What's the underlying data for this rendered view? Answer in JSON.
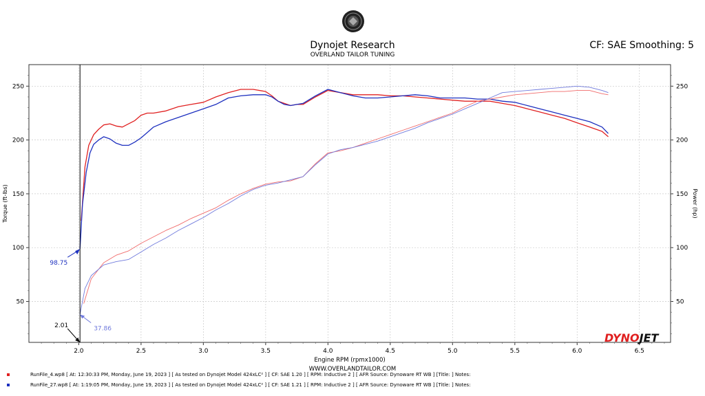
{
  "header": {
    "company": "Dynojet Research",
    "shop": "OVERLAND TAILOR TUNING",
    "cf_info": "CF: SAE Smoothing: 5",
    "website": "WWW.OVERLANDTAILOR.COM",
    "brand_logo": "DYNOJET"
  },
  "colors": {
    "red": "#e02020",
    "blue": "#1c2fbf",
    "light_red": "#f06a6a",
    "light_blue": "#6f79dc",
    "grid": "#c8c8c8",
    "cursor": "#000000"
  },
  "runs": [
    {
      "file": "RunFile_4.wp8",
      "details": "RunFile_4.wp8 [ At:  12:30:33 PM, Monday, June 19, 2023 ] [ As tested on Dynojet Model 424xLC² ] [ CF: SAE 1.20 ] [ RPM: Inductive 2 ] [ AFR Source: Dynoware RT WB ] [Title: ]   Notes:",
      "color": "#e02020"
    },
    {
      "file": "RunFile_27.wp8",
      "details": "RunFile_27.wp8 [ At:  1:19:05 PM, Monday, June 19, 2023 ] [ As tested on Dynojet Model 424xLC² ] [ CF: SAE 1.21 ] [ RPM: Inductive 2 ] [ AFR Source: Dynoware RT WB ] [Title: ]   Notes:",
      "color": "#1c2fbf"
    }
  ],
  "chart_data": {
    "type": "line",
    "xlabel": "Engine RPM (rpmx1000)",
    "ylabel_left": "Torque (ft-lbs)",
    "ylabel_right": "Power (hp)",
    "xlim": [
      1.6,
      6.75
    ],
    "ylim": [
      12,
      270
    ],
    "x_ticks": [
      "2.0",
      "2.5",
      "3.0",
      "3.5",
      "4.0",
      "4.5",
      "5.0",
      "5.5",
      "6.0",
      "6.5"
    ],
    "y_ticks": [
      "50",
      "100",
      "150",
      "200",
      "250"
    ],
    "grid": true,
    "cursor": {
      "rpm_label": "2.01",
      "rpm": 2.01,
      "torque_label": "98.75",
      "torque": 98.75,
      "power_label": "37.86",
      "power": 37.86
    },
    "series": [
      {
        "metric": "torque",
        "run": "RunFile_4.wp8",
        "color": "#e02020",
        "x": [
          2.02,
          2.05,
          2.08,
          2.12,
          2.16,
          2.2,
          2.25,
          2.3,
          2.35,
          2.4,
          2.45,
          2.5,
          2.55,
          2.6,
          2.7,
          2.8,
          2.9,
          3.0,
          3.1,
          3.2,
          3.3,
          3.4,
          3.5,
          3.55,
          3.6,
          3.65,
          3.7,
          3.75,
          3.8,
          3.9,
          4.0,
          4.1,
          4.2,
          4.3,
          4.4,
          4.5,
          4.6,
          4.7,
          4.8,
          4.9,
          5.0,
          5.1,
          5.2,
          5.3,
          5.4,
          5.5,
          5.6,
          5.7,
          5.8,
          5.9,
          6.0,
          6.1,
          6.2,
          6.25
        ],
        "y": [
          125,
          175,
          195,
          205,
          210,
          214,
          215,
          213,
          212,
          215,
          218,
          223,
          225,
          225,
          227,
          231,
          233,
          235,
          240,
          244,
          247,
          247,
          245,
          241,
          236,
          234,
          232,
          233,
          233,
          240,
          246,
          244,
          242,
          242,
          242,
          241,
          241,
          240,
          239,
          238,
          237,
          236,
          236,
          236,
          234,
          232,
          229,
          226,
          223,
          220,
          216,
          212,
          208,
          203
        ]
      },
      {
        "metric": "torque",
        "run": "RunFile_27.wp8",
        "color": "#1c2fbf",
        "x": [
          2.01,
          2.03,
          2.06,
          2.09,
          2.12,
          2.16,
          2.2,
          2.25,
          2.3,
          2.35,
          2.4,
          2.45,
          2.5,
          2.55,
          2.6,
          2.7,
          2.8,
          2.9,
          3.0,
          3.1,
          3.2,
          3.3,
          3.4,
          3.5,
          3.55,
          3.6,
          3.65,
          3.7,
          3.75,
          3.8,
          3.9,
          4.0,
          4.1,
          4.2,
          4.3,
          4.4,
          4.5,
          4.6,
          4.7,
          4.8,
          4.9,
          5.0,
          5.1,
          5.2,
          5.3,
          5.4,
          5.5,
          5.6,
          5.7,
          5.8,
          5.9,
          6.0,
          6.1,
          6.2,
          6.25
        ],
        "y": [
          99,
          140,
          170,
          188,
          196,
          200,
          203,
          201,
          197,
          195,
          195,
          198,
          202,
          207,
          212,
          217,
          221,
          225,
          229,
          233,
          239,
          241,
          242,
          242,
          240,
          236,
          233,
          232,
          233,
          234,
          241,
          247,
          244,
          241,
          239,
          239,
          240,
          241,
          242,
          241,
          239,
          239,
          239,
          238,
          238,
          236,
          235,
          232,
          229,
          226,
          223,
          220,
          217,
          212,
          206
        ]
      },
      {
        "metric": "power",
        "run": "RunFile_4.wp8",
        "color": "#f06a6a",
        "x": [
          2.04,
          2.1,
          2.2,
          2.3,
          2.4,
          2.5,
          2.6,
          2.7,
          2.8,
          2.9,
          3.0,
          3.1,
          3.2,
          3.3,
          3.4,
          3.5,
          3.6,
          3.7,
          3.8,
          3.9,
          4.0,
          4.1,
          4.2,
          4.3,
          4.4,
          4.5,
          4.6,
          4.7,
          4.8,
          4.9,
          5.0,
          5.1,
          5.2,
          5.3,
          5.4,
          5.5,
          5.6,
          5.7,
          5.8,
          5.9,
          6.0,
          6.1,
          6.2,
          6.25
        ],
        "y": [
          48,
          71,
          86,
          93,
          97,
          104,
          110,
          116,
          121,
          127,
          132,
          137,
          144,
          150,
          155,
          159,
          161,
          162,
          166,
          178,
          188,
          190,
          193,
          197,
          201,
          205,
          209,
          213,
          217,
          221,
          225,
          231,
          236,
          238,
          240,
          242,
          243,
          244,
          245,
          245,
          246,
          246,
          243,
          242
        ]
      },
      {
        "metric": "power",
        "run": "RunFile_27.wp8",
        "color": "#6f79dc",
        "x": [
          2.01,
          2.05,
          2.1,
          2.2,
          2.3,
          2.4,
          2.5,
          2.6,
          2.7,
          2.8,
          2.9,
          3.0,
          3.1,
          3.2,
          3.3,
          3.4,
          3.5,
          3.6,
          3.7,
          3.8,
          3.9,
          4.0,
          4.1,
          4.2,
          4.3,
          4.4,
          4.5,
          4.6,
          4.7,
          4.8,
          4.9,
          5.0,
          5.1,
          5.2,
          5.3,
          5.4,
          5.5,
          5.6,
          5.7,
          5.8,
          5.9,
          6.0,
          6.1,
          6.2,
          6.25
        ],
        "y": [
          38,
          62,
          74,
          84,
          87,
          89,
          96,
          103,
          109,
          116,
          122,
          128,
          135,
          141,
          148,
          154,
          158,
          160,
          163,
          166,
          177,
          187,
          191,
          193,
          196,
          199,
          203,
          207,
          211,
          216,
          220,
          224,
          229,
          234,
          239,
          244,
          245,
          246,
          247,
          248,
          249,
          250,
          249,
          246,
          244
        ]
      }
    ]
  }
}
